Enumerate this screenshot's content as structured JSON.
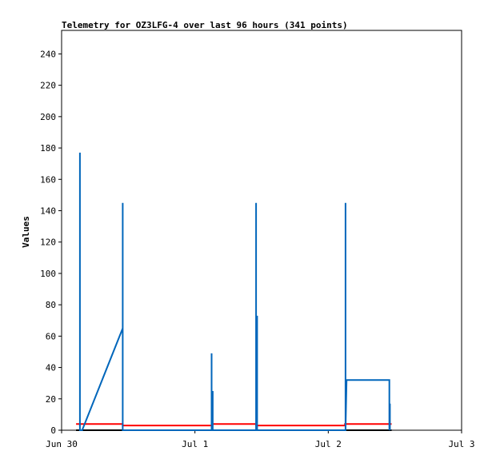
{
  "chart_data": {
    "type": "line",
    "title": "Telemetry for OZ3LFG-4 over last 96 hours (341 points)",
    "xlabel": "",
    "ylabel": "Values",
    "xlim": [
      "Jun 30 00:00",
      "Jul 3 00:00"
    ],
    "ylim": [
      0,
      255
    ],
    "x_ticks": [
      {
        "label": "Jun 30",
        "hour": 0
      },
      {
        "label": "Jul 1",
        "hour": 24
      },
      {
        "label": "Jul 2",
        "hour": 48
      },
      {
        "label": "Jul 3",
        "hour": 72
      }
    ],
    "y_ticks": [
      0,
      20,
      40,
      60,
      80,
      100,
      120,
      140,
      160,
      180,
      200,
      220,
      240
    ],
    "grid": false,
    "legend": "none",
    "series": [
      {
        "color": "#000000",
        "points": [
          [
            2.6,
            0
          ],
          [
            59.4,
            0
          ]
        ]
      },
      {
        "color": "#ff0000",
        "points": [
          [
            2.6,
            4
          ],
          [
            11.0,
            4
          ],
          [
            11.0,
            3
          ],
          [
            27.0,
            3
          ],
          [
            27.0,
            4
          ],
          [
            35.0,
            4
          ],
          [
            35.0,
            3
          ],
          [
            51.0,
            3
          ],
          [
            51.0,
            4
          ],
          [
            59.4,
            4
          ]
        ]
      },
      {
        "color": "#0066bb",
        "points": [
          [
            3.3,
            0
          ],
          [
            3.3,
            177
          ],
          [
            3.3,
            0
          ],
          [
            3.7,
            0
          ],
          [
            11.0,
            65
          ],
          [
            11.0,
            145
          ],
          [
            11.0,
            0
          ],
          [
            11.0,
            63
          ],
          [
            11.0,
            0
          ],
          [
            27.0,
            0
          ],
          [
            27.0,
            49
          ],
          [
            27.0,
            0
          ],
          [
            27.2,
            25
          ],
          [
            27.2,
            0
          ],
          [
            35.0,
            0
          ],
          [
            35.0,
            145
          ],
          [
            35.0,
            0
          ],
          [
            35.2,
            73
          ],
          [
            35.2,
            0
          ],
          [
            51.1,
            0
          ],
          [
            51.1,
            145
          ],
          [
            51.1,
            0
          ],
          [
            51.3,
            32
          ],
          [
            59.0,
            32
          ],
          [
            59.0,
            0
          ],
          [
            59.1,
            17
          ],
          [
            59.1,
            0
          ]
        ]
      }
    ]
  }
}
